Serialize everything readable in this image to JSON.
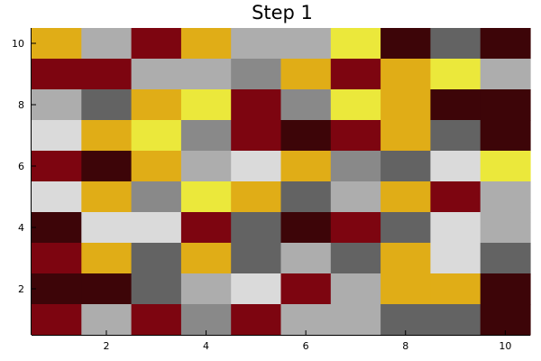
{
  "chart_data": {
    "type": "heatmap",
    "title": "Step 1",
    "xlabel": "",
    "ylabel": "",
    "xlim": [
      0.5,
      10.5
    ],
    "ylim": [
      0.5,
      10.5
    ],
    "x_ticks": [
      2,
      4,
      6,
      8,
      10
    ],
    "y_ticks": [
      2,
      4,
      6,
      8,
      10
    ],
    "grid": false,
    "legend": "none",
    "palette": {
      "A": "#3d0508",
      "R": "#7d0510",
      "D": "#636363",
      "G": "#898989",
      "S": "#adadad",
      "L": "#dadada",
      "O": "#e0ad17",
      "Y": "#ebe83b"
    },
    "rows_top_to_bottom": [
      [
        "O",
        "S",
        "R",
        "O",
        "S",
        "S",
        "Y",
        "A",
        "D",
        "A"
      ],
      [
        "R",
        "R",
        "S",
        "S",
        "G",
        "O",
        "R",
        "O",
        "Y",
        "S"
      ],
      [
        "S",
        "D",
        "O",
        "Y",
        "R",
        "G",
        "Y",
        "O",
        "A",
        "A"
      ],
      [
        "L",
        "O",
        "Y",
        "G",
        "R",
        "A",
        "R",
        "O",
        "D",
        "A"
      ],
      [
        "R",
        "A",
        "O",
        "S",
        "L",
        "O",
        "G",
        "D",
        "L",
        "Y"
      ],
      [
        "L",
        "O",
        "G",
        "Y",
        "O",
        "D",
        "S",
        "O",
        "R",
        "S"
      ],
      [
        "A",
        "L",
        "L",
        "R",
        "D",
        "A",
        "R",
        "D",
        "L",
        "S"
      ],
      [
        "R",
        "O",
        "D",
        "O",
        "D",
        "S",
        "D",
        "O",
        "L",
        "D"
      ],
      [
        "A",
        "A",
        "D",
        "S",
        "L",
        "R",
        "S",
        "O",
        "O",
        "A"
      ],
      [
        "R",
        "S",
        "R",
        "G",
        "R",
        "S",
        "S",
        "D",
        "D",
        "A"
      ]
    ]
  }
}
